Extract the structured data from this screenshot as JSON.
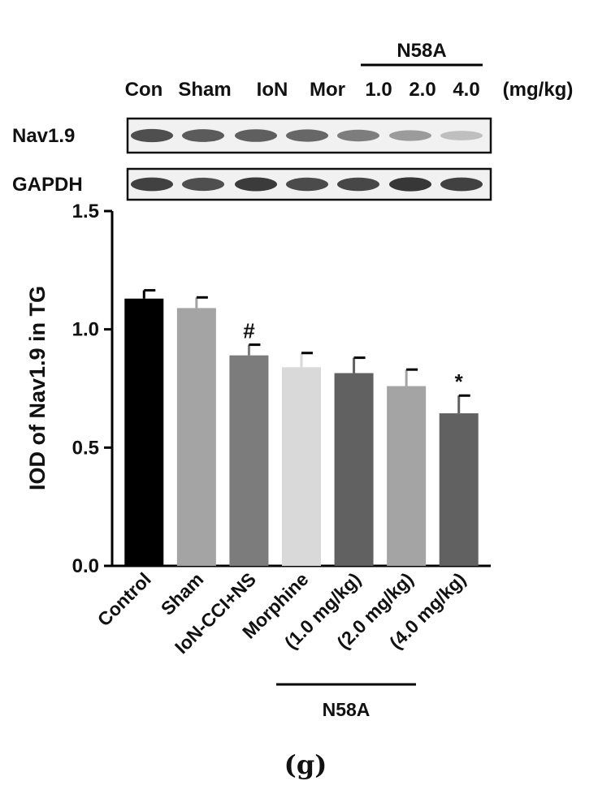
{
  "blot": {
    "header_group": "N58A",
    "lane_labels": [
      "Con",
      "Sham",
      "IoN",
      "Mor",
      "1.0",
      "2.0",
      "4.0",
      "(mg/kg)"
    ],
    "rows": [
      {
        "label": "Nav1.9",
        "intensity": [
          0.78,
          0.72,
          0.7,
          0.66,
          0.55,
          0.4,
          0.22
        ]
      },
      {
        "label": "GAPDH",
        "intensity": [
          0.85,
          0.78,
          0.88,
          0.8,
          0.82,
          0.9,
          0.85
        ]
      }
    ]
  },
  "chart_data": {
    "type": "bar",
    "title": "",
    "xlabel": "",
    "ylabel": "IOD of Nav1.9 in TG",
    "ylim": [
      0,
      1.5
    ],
    "yticks": [
      "0.0",
      "0.5",
      "1.0",
      "1.5"
    ],
    "ytick_values": [
      0,
      0.5,
      1.0,
      1.5
    ],
    "categories": [
      "Control",
      "Sham",
      "IoN-CCI+NS",
      "Morphine",
      "(1.0 mg/kg)",
      "(2.0 mg/kg)",
      "(4.0 mg/kg)"
    ],
    "values": [
      1.13,
      1.09,
      0.89,
      0.84,
      0.815,
      0.76,
      0.645
    ],
    "errors": [
      0.035,
      0.045,
      0.045,
      0.06,
      0.065,
      0.07,
      0.075
    ],
    "colors": [
      "#000000",
      "#a4a4a4",
      "#7c7c7c",
      "#d9d9d9",
      "#616161",
      "#a4a4a4",
      "#616161"
    ],
    "annotations": [
      "",
      "",
      "#",
      "",
      "",
      "",
      "*"
    ],
    "group_label": "N58A",
    "group_start": 4,
    "group_end": 6,
    "grid": false,
    "legend": "none"
  },
  "panel_label": "(g)"
}
